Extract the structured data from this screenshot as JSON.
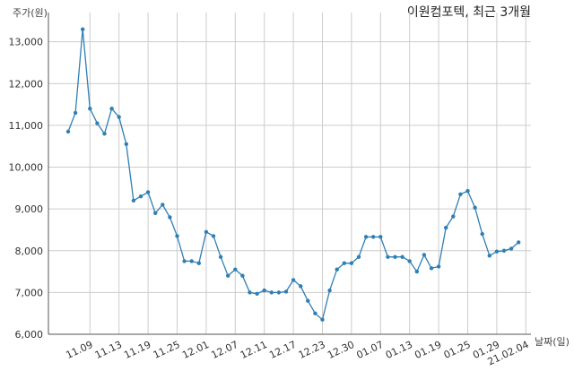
{
  "chart_data": {
    "type": "line",
    "title": "이원컴포텍, 최근 3개월",
    "ylabel": "주가(원)",
    "xlabel": "날짜(일)",
    "ylim": [
      6000,
      13700
    ],
    "yticks": [
      6000,
      7000,
      8000,
      9000,
      10000,
      11000,
      12000,
      13000
    ],
    "ytick_labels": [
      "6,000",
      "7,000",
      "8,000",
      "9,000",
      "10,000",
      "11,000",
      "12,000",
      "13,000"
    ],
    "xtick_labels": [
      "11.09",
      "11.13",
      "11.19",
      "11.25",
      "12.01",
      "12.07",
      "12.11",
      "12.17",
      "12.23",
      "12.30",
      "01.07",
      "01.13",
      "01.19",
      "01.25",
      "01.29",
      "21.02.04"
    ],
    "xtick_index": [
      3,
      7,
      11,
      15,
      19,
      23,
      27,
      31,
      35,
      39,
      43,
      47,
      51,
      55,
      59,
      63
    ],
    "grid": true,
    "color": "#2f7fb5",
    "series": [
      {
        "values": [
          10850,
          11300,
          13300,
          11400,
          11050,
          10800,
          11400,
          11200,
          10550,
          9200,
          9300,
          9400,
          8900,
          9100,
          8800,
          8350,
          7750,
          7750,
          7700,
          8450,
          8350,
          7850,
          7400,
          7550,
          7400,
          7000,
          6970,
          7050,
          7000,
          7000,
          7020,
          7300,
          7150,
          6800,
          6500,
          6350,
          7050,
          7550,
          7700,
          7700,
          7850,
          8330,
          8330,
          8330,
          7850,
          7850,
          7850,
          7750,
          7500,
          7900,
          7580,
          7620,
          8550,
          8820,
          9350,
          9430,
          9030,
          8400,
          7880,
          7980,
          8000,
          8050,
          8200
        ]
      }
    ]
  }
}
